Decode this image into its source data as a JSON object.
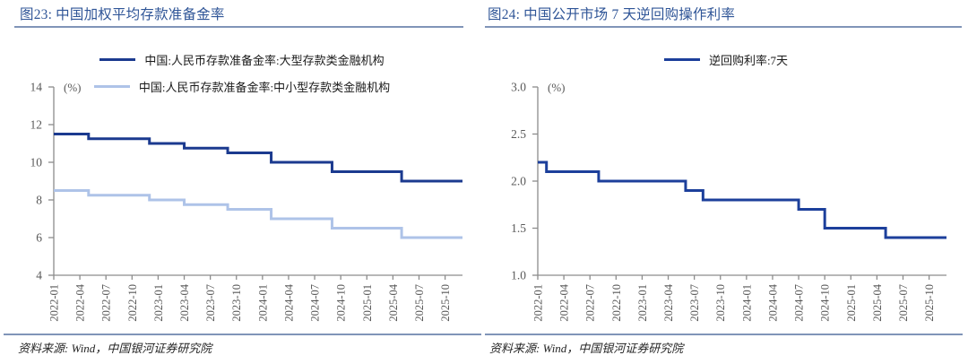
{
  "theme": {
    "background": "#FFFFFF",
    "title_color": "#2F5597",
    "rule_color": "#8094B8",
    "axis_color": "#8C8C8C",
    "tick_label_color": "#595959",
    "legend_text_color": "#1A1A1A",
    "source_text_color": "#262626"
  },
  "chart_data": [
    {
      "id": "fig23",
      "type": "line",
      "line_style": "step",
      "title": "图23: 中国加权平均存款准备金率",
      "ylabel": "(%)",
      "ylim": [
        4,
        14
      ],
      "yticks": [
        {
          "v": 14,
          "t": "14"
        },
        {
          "v": 12,
          "t": "12"
        },
        {
          "v": 10,
          "t": "10"
        },
        {
          "v": 8,
          "t": "8"
        },
        {
          "v": 6,
          "t": "6"
        },
        {
          "v": 4,
          "t": "4"
        }
      ],
      "x_start": "2022-01",
      "x_end": "2025-12",
      "xticks": [
        "2022-01",
        "2022-04",
        "2022-07",
        "2022-10",
        "2023-01",
        "2023-04",
        "2023-07",
        "2023-10",
        "2024-01",
        "2024-04",
        "2024-07",
        "2024-10",
        "2025-01",
        "2025-04",
        "2025-07",
        "2025-10"
      ],
      "grid": false,
      "legend_position": "top-center",
      "series": [
        {
          "name": "中国:人民币存款准备金率:大型存款类金融机构",
          "color": "#1B3A8F",
          "step_points": [
            [
              "2022-01",
              11.5
            ],
            [
              "2022-05",
              11.25
            ],
            [
              "2022-12",
              11.0
            ],
            [
              "2023-04",
              10.75
            ],
            [
              "2023-09",
              10.5
            ],
            [
              "2024-02",
              10.0
            ],
            [
              "2024-09",
              9.5
            ],
            [
              "2025-05",
              9.0
            ]
          ]
        },
        {
          "name": "中国:人民币存款准备金率:中小型存款类金融机构",
          "color": "#AEC3E8",
          "step_points": [
            [
              "2022-01",
              8.5
            ],
            [
              "2022-05",
              8.25
            ],
            [
              "2022-12",
              8.0
            ],
            [
              "2023-04",
              7.75
            ],
            [
              "2023-09",
              7.5
            ],
            [
              "2024-02",
              7.0
            ],
            [
              "2024-09",
              6.5
            ],
            [
              "2025-05",
              6.0
            ]
          ]
        }
      ],
      "source": "资料来源: Wind，中国银河证券研究院"
    },
    {
      "id": "fig24",
      "type": "line",
      "line_style": "step",
      "title": "图24: 中国公开市场 7 天逆回购操作利率",
      "ylabel": "(%)",
      "ylim": [
        1.0,
        3.0
      ],
      "yticks": [
        {
          "v": 3.0,
          "t": "3.0"
        },
        {
          "v": 2.5,
          "t": "2.5"
        },
        {
          "v": 2.0,
          "t": "2.0"
        },
        {
          "v": 1.5,
          "t": "1.5"
        },
        {
          "v": 1.0,
          "t": "1.0"
        }
      ],
      "x_start": "2022-01",
      "x_end": "2025-12",
      "xticks": [
        "2022-01",
        "2022-04",
        "2022-07",
        "2022-10",
        "2023-01",
        "2023-04",
        "2023-07",
        "2023-10",
        "2024-01",
        "2024-04",
        "2024-07",
        "2024-10",
        "2025-01",
        "2025-04",
        "2025-07",
        "2025-10"
      ],
      "grid": false,
      "legend_position": "top-center",
      "series": [
        {
          "name": "逆回购利率:7天",
          "color": "#1C3F9B",
          "step_points": [
            [
              "2022-01",
              2.2
            ],
            [
              "2022-02",
              2.1
            ],
            [
              "2022-08",
              2.0
            ],
            [
              "2023-06",
              1.9
            ],
            [
              "2023-08",
              1.8
            ],
            [
              "2024-07",
              1.7
            ],
            [
              "2024-10",
              1.5
            ],
            [
              "2025-05",
              1.4
            ]
          ]
        }
      ],
      "source": "资料来源: Wind，中国银河证券研究院"
    }
  ]
}
